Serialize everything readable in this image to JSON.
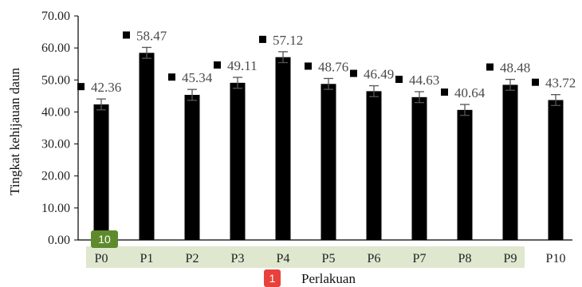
{
  "chart_data": {
    "type": "bar",
    "categories": [
      "P0",
      "P1",
      "P2",
      "P3",
      "P4",
      "P5",
      "P6",
      "P7",
      "P8",
      "P9",
      "P10"
    ],
    "values": [
      42.36,
      58.47,
      45.34,
      49.11,
      57.12,
      48.76,
      46.49,
      44.63,
      40.64,
      48.48,
      43.72
    ],
    "data_labels": [
      "42.36",
      "58.47",
      "45.34",
      "49.11",
      "57.12",
      "48.76",
      "46.49",
      "44.63",
      "40.64",
      "48.48",
      "43.72"
    ],
    "error": [
      1.7,
      1.7,
      1.7,
      1.7,
      1.7,
      1.7,
      1.7,
      1.7,
      1.7,
      1.7,
      1.7
    ],
    "ylim": [
      0,
      70
    ],
    "yticks": [
      "0.00",
      "10.00",
      "20.00",
      "30.00",
      "40.00",
      "50.00",
      "60.00",
      "70.00"
    ],
    "ylabel": "Tingkat kehijauan daun",
    "xlabel": "Perlakuan",
    "bar_color": "#000000",
    "grid": false
  },
  "overlay": {
    "badge_axis": "10",
    "badge_axis_color": "#5f8a2c",
    "badge_title": "1",
    "badge_title_color": "#e8413c",
    "highlight_color": "#dfe7cf"
  }
}
